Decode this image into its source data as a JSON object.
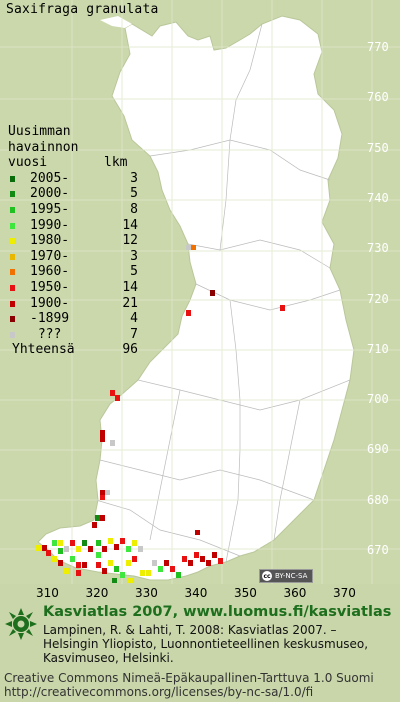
{
  "title": "Saxifraga granulata",
  "legend": {
    "header": [
      "Uusimman",
      "havainnon",
      "vuosi"
    ],
    "count_header": "lkm",
    "rows": [
      {
        "label": "2005-",
        "count": "3",
        "color": "#0a6b0a"
      },
      {
        "label": "2000-",
        "count": "5",
        "color": "#138a13"
      },
      {
        "label": "1995-",
        "count": "8",
        "color": "#20c020"
      },
      {
        "label": "1990-",
        "count": "14",
        "color": "#3ee63e"
      },
      {
        "label": "1980-",
        "count": "12",
        "color": "#eeee00"
      },
      {
        "label": "1970-",
        "count": "3",
        "color": "#e8b800"
      },
      {
        "label": "1960-",
        "count": "5",
        "color": "#f07000"
      },
      {
        "label": "1950-",
        "count": "14",
        "color": "#e81010"
      },
      {
        "label": "1900-",
        "count": "21",
        "color": "#c00000"
      },
      {
        "label": "-1899",
        "count": "4",
        "color": "#8a0000"
      },
      {
        "label": "???",
        "count": "7",
        "color": "#c8c8c8"
      }
    ],
    "total_label": "Yhteensä",
    "total_count": "96"
  },
  "axis": {
    "y_ticks": [
      "770",
      "760",
      "750",
      "740",
      "730",
      "720",
      "710",
      "700",
      "690",
      "680",
      "670"
    ],
    "x_ticks": [
      "310",
      "320",
      "330",
      "340",
      "350",
      "360",
      "370"
    ]
  },
  "cc_badge": "BY-NC-SA",
  "footer": {
    "atlas": "Kasviatlas 2007, www.luomus.fi/kasviatlas",
    "citation": "Lampinen, R. & Lahti, T. 2008: Kasviatlas 2007. –\nHelsingin Yliopisto, Luonnontieteellinen keskusmuseo,\nKasvimuseo, Helsinki.",
    "license": "Creative Commons Nimeä-Epäkaupallinen-Tarttuva 1.0 Suomi\nhttp://creativecommons.org/licenses/by-nc-sa/1.0/fi"
  },
  "colors": {
    "background": "#cbd8ac",
    "finland": "#ffffff",
    "accent": "#1d6e1d"
  }
}
